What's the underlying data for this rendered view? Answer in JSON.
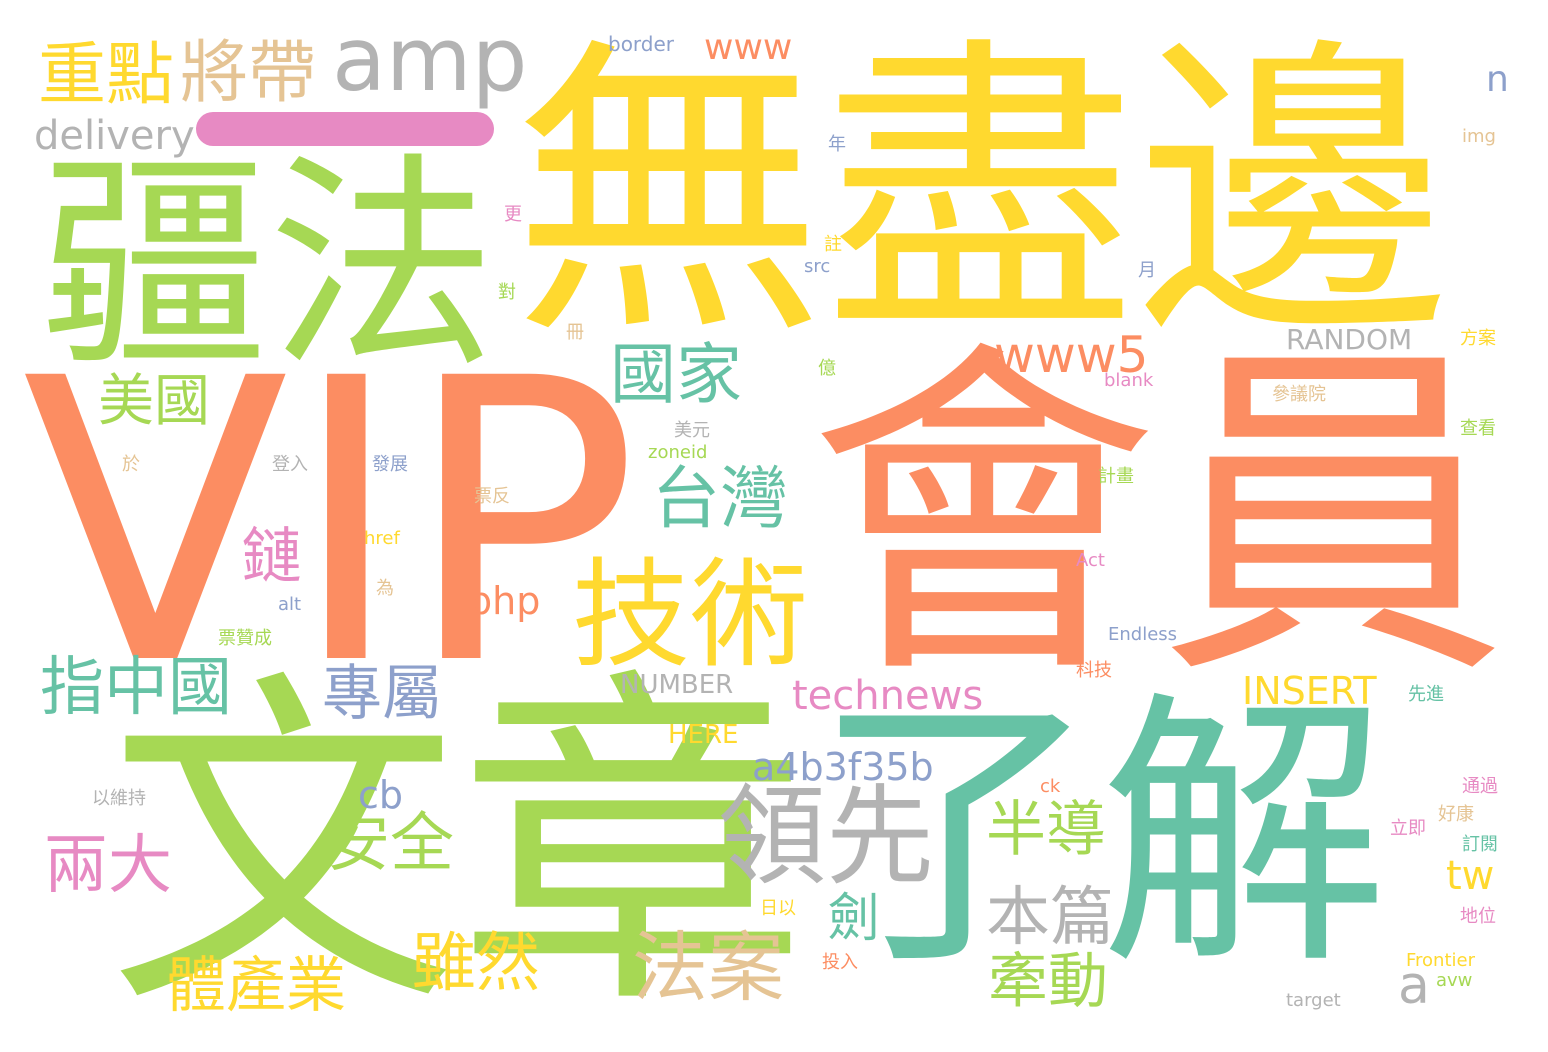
{
  "palette": {
    "green": "#a6d854",
    "orange": "#fc8d62",
    "yellow": "#ffd92f",
    "teal": "#66c2a5",
    "gray": "#b3b3b3",
    "tan": "#e5c494",
    "pink": "#e78ac3",
    "blue": "#8da0cb"
  },
  "words": [
    "VIP",
    "會員",
    "無盡邊",
    "文章",
    "了解",
    "疆法",
    "領先",
    "技術",
    "amp",
    "將帶",
    "重點",
    "delivery",
    "www",
    "國家",
    "www5",
    "美國",
    "台灣",
    "鏈",
    "指中國",
    "專屬",
    "technews",
    "兩大",
    "安全",
    "半導",
    "劍",
    "a4b3f35b",
    "cb",
    "php",
    "本篇",
    "法案",
    "雖然",
    "體產業",
    "牽動",
    "tw",
    "a",
    "INSERT",
    "NUMBER",
    "HERE",
    "RANDOM",
    "border",
    "n",
    "img",
    "年",
    "更",
    "註",
    "src",
    "對",
    "冊",
    "月",
    "億",
    "方案",
    "blank",
    "參議院",
    "查看",
    "美元",
    "zoneid",
    "登入",
    "發展",
    "於",
    "票反",
    "計畫",
    "href",
    "為",
    "alt",
    "Act",
    "票贊成",
    "Endless",
    "科技",
    "先進",
    "以維持",
    "ck",
    "通過",
    "好康",
    "立即",
    "訂閱",
    "日以",
    "地位",
    "投入",
    "Frontier",
    "avw",
    "target"
  ]
}
